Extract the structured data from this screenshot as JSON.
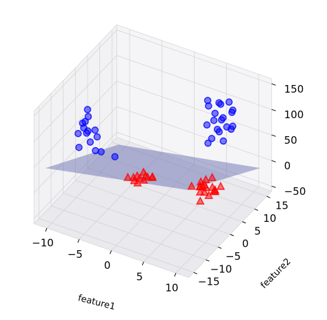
{
  "chart_data": {
    "type": "scatter3d",
    "xlabel": "feature1",
    "ylabel": "feature2",
    "xlim": [
      -12,
      12
    ],
    "ylim": [
      -17,
      17
    ],
    "zlim": [
      -60,
      160
    ],
    "xticks": [
      {
        "value": -10,
        "label": "−10"
      },
      {
        "value": -5,
        "label": "−5"
      },
      0,
      5,
      10
    ],
    "yticks": [
      {
        "value": -15,
        "label": "−15"
      },
      {
        "value": -10,
        "label": "−10"
      },
      {
        "value": -5,
        "label": "−5"
      },
      0,
      5,
      10,
      15
    ],
    "zticks": [
      {
        "value": -50,
        "label": "−50"
      },
      0,
      50,
      100,
      150
    ],
    "grid": true,
    "plane": {
      "color": "#6b72b0",
      "x": [
        -11,
        11,
        11,
        -11
      ],
      "y": [
        -15,
        -15,
        15,
        15
      ],
      "z": [
        43,
        97,
        -9,
        -60
      ]
    },
    "series": [
      {
        "color": "#0000ff",
        "marker": "circle",
        "x": [
          -9,
          -8.5,
          -8,
          -9.5,
          -7.5,
          -8,
          -9,
          -8.8,
          -7,
          -6.5,
          -8.2,
          -9.2,
          -7.8,
          -5.5,
          -8.6
        ],
        "y": [
          -5,
          -4,
          -6,
          -5.5,
          -3,
          -4.5,
          -6.5,
          -3.5,
          -5,
          -4,
          -2,
          -4,
          -6,
          -1,
          -5
        ],
        "z": [
          90,
          100,
          80,
          70,
          60,
          55,
          50,
          110,
          45,
          40,
          65,
          75,
          85,
          20,
          95
        ]
      },
      {
        "color": "#0000ff",
        "marker": "circle",
        "x": [
          8,
          9,
          7,
          8.5,
          10,
          7.5,
          9.5,
          8,
          6.5,
          9,
          8.2,
          7,
          10.5,
          8.8,
          7.8,
          9.2,
          6,
          8.4,
          7.2,
          9.8
        ],
        "y": [
          6,
          5,
          7,
          4,
          6,
          8,
          7,
          3,
          5,
          9,
          6.5,
          4,
          5,
          8,
          2,
          6,
          7,
          5,
          6,
          3
        ],
        "z": [
          150,
          130,
          120,
          110,
          140,
          135,
          100,
          95,
          105,
          125,
          115,
          160,
          120,
          145,
          90,
          108,
          130,
          100,
          112,
          98
        ]
      },
      {
        "color": "#ff0000",
        "marker": "triangle",
        "x": [
          -2,
          -1.5,
          -2.5,
          -1,
          -3,
          -2.2,
          -1.8,
          -0.5,
          -2.8,
          -1.2,
          -3.5,
          -0.8
        ],
        "y": [
          0,
          1,
          -1,
          0.5,
          0,
          2,
          -1.5,
          1,
          1,
          -0.5,
          -1,
          2
        ],
        "z": [
          -12,
          -10,
          -14,
          -8,
          -15,
          -11,
          -13,
          -9,
          -16,
          -10,
          -12,
          -14
        ]
      },
      {
        "color": "#ff0000",
        "marker": "triangle",
        "x": [
          6,
          5.5,
          7,
          6.5,
          5,
          7.5,
          6.2,
          4.8,
          6.8,
          5.8,
          7.2,
          6,
          5.2,
          6.6,
          7.8,
          5.6,
          6.4,
          4.5
        ],
        "y": [
          6,
          5,
          7,
          4,
          6,
          8,
          3,
          7,
          5,
          9,
          6,
          4.5,
          8,
          2,
          5,
          6.5,
          7.5,
          4
        ],
        "z": [
          -25,
          -20,
          -30,
          -22,
          -28,
          -26,
          -18,
          -24,
          -32,
          -21,
          -27,
          -15,
          -23,
          -29,
          -20,
          -24,
          -30,
          -19
        ]
      }
    ]
  }
}
